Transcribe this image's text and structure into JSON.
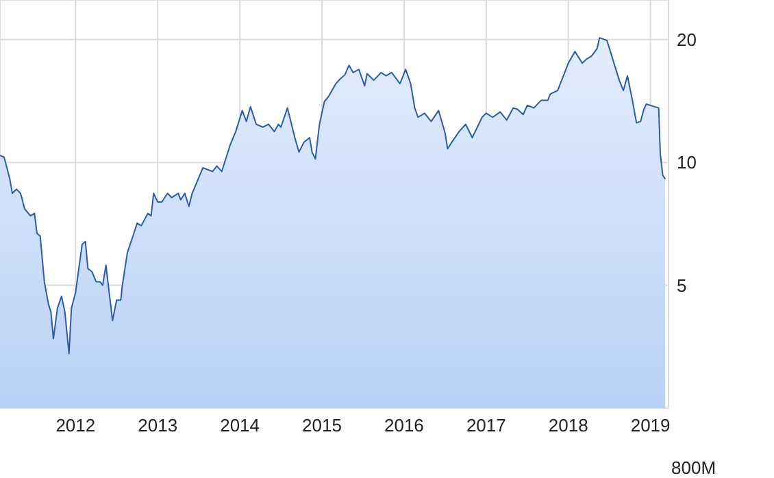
{
  "chart_data": {
    "type": "area",
    "log": "y",
    "grid": true,
    "xlim": [
      2011.08,
      2019.22
    ],
    "xticks": [
      2012,
      2013,
      2014,
      2015,
      2016,
      2017,
      2018,
      2019
    ],
    "ylim": [
      2.5,
      25
    ],
    "yticks": [
      5,
      10,
      20
    ],
    "annotations": [
      "800M"
    ],
    "series": [
      {
        "color": "#2a5caa",
        "x": [
          2011.08,
          2011.13,
          2011.2,
          2011.23,
          2011.28,
          2011.33,
          2011.38,
          2011.45,
          2011.5,
          2011.53,
          2011.57,
          2011.62,
          2011.67,
          2011.7,
          2011.73,
          2011.78,
          2011.83,
          2011.87,
          2011.92,
          2011.95,
          2012.0,
          2012.08,
          2012.12,
          2012.15,
          2012.2,
          2012.25,
          2012.3,
          2012.33,
          2012.37,
          2012.45,
          2012.5,
          2012.55,
          2012.57,
          2012.63,
          2012.72,
          2012.75,
          2012.8,
          2012.88,
          2012.92,
          2012.95,
          2013.0,
          2013.05,
          2013.12,
          2013.17,
          2013.25,
          2013.28,
          2013.33,
          2013.38,
          2013.42,
          2013.55,
          2013.67,
          2013.72,
          2013.78,
          2013.88,
          2013.95,
          2014.03,
          2014.08,
          2014.13,
          2014.2,
          2014.28,
          2014.35,
          2014.42,
          2014.47,
          2014.5,
          2014.58,
          2014.67,
          2014.72,
          2014.78,
          2014.85,
          2014.88,
          2014.92,
          2014.97,
          2015.03,
          2015.08,
          2015.17,
          2015.22,
          2015.28,
          2015.33,
          2015.38,
          2015.45,
          2015.52,
          2015.55,
          2015.63,
          2015.72,
          2015.78,
          2015.85,
          2015.95,
          2016.02,
          2016.08,
          2016.13,
          2016.17,
          2016.25,
          2016.33,
          2016.42,
          2016.5,
          2016.53,
          2016.58,
          2016.67,
          2016.75,
          2016.83,
          2016.95,
          2017.0,
          2017.08,
          2017.17,
          2017.25,
          2017.33,
          2017.38,
          2017.45,
          2017.5,
          2017.58,
          2017.67,
          2017.75,
          2017.78,
          2017.87,
          2018.0,
          2018.08,
          2018.17,
          2018.22,
          2018.28,
          2018.35,
          2018.38,
          2018.47,
          2018.53,
          2018.62,
          2018.67,
          2018.72,
          2018.78,
          2018.83,
          2018.88,
          2018.92,
          2018.95,
          2019.1,
          2019.12,
          2019.15,
          2019.18
        ],
        "values": [
          10.4,
          10.3,
          9.1,
          8.4,
          8.6,
          8.4,
          7.7,
          7.4,
          7.5,
          6.7,
          6.6,
          5.1,
          4.5,
          4.3,
          3.7,
          4.4,
          4.7,
          4.3,
          3.4,
          4.4,
          4.8,
          6.3,
          6.4,
          5.5,
          5.4,
          5.1,
          5.1,
          5.0,
          5.6,
          4.1,
          4.6,
          4.6,
          5.0,
          6.0,
          6.8,
          7.1,
          7.0,
          7.5,
          7.4,
          8.4,
          8.0,
          8.0,
          8.4,
          8.2,
          8.4,
          8.1,
          8.4,
          7.8,
          8.4,
          9.7,
          9.5,
          9.8,
          9.5,
          11.0,
          11.9,
          13.4,
          12.6,
          13.7,
          12.4,
          12.2,
          12.4,
          11.9,
          12.4,
          12.2,
          13.6,
          11.5,
          10.6,
          11.2,
          11.5,
          10.6,
          10.2,
          12.4,
          14.1,
          14.5,
          15.6,
          16.0,
          16.4,
          17.3,
          16.6,
          16.9,
          15.4,
          16.5,
          15.9,
          16.6,
          16.3,
          16.6,
          15.6,
          16.9,
          15.6,
          13.6,
          12.9,
          13.2,
          12.6,
          13.4,
          11.8,
          10.8,
          11.2,
          11.9,
          12.4,
          11.5,
          12.9,
          13.2,
          12.9,
          13.3,
          12.7,
          13.6,
          13.5,
          13.1,
          13.8,
          13.6,
          14.2,
          14.2,
          14.7,
          15.0,
          17.5,
          18.7,
          17.5,
          17.9,
          18.2,
          19.0,
          20.2,
          19.9,
          18.2,
          15.9,
          15.0,
          16.3,
          14.2,
          12.5,
          12.6,
          13.5,
          13.9,
          13.6,
          10.5,
          9.3,
          9.1
        ]
      }
    ]
  }
}
